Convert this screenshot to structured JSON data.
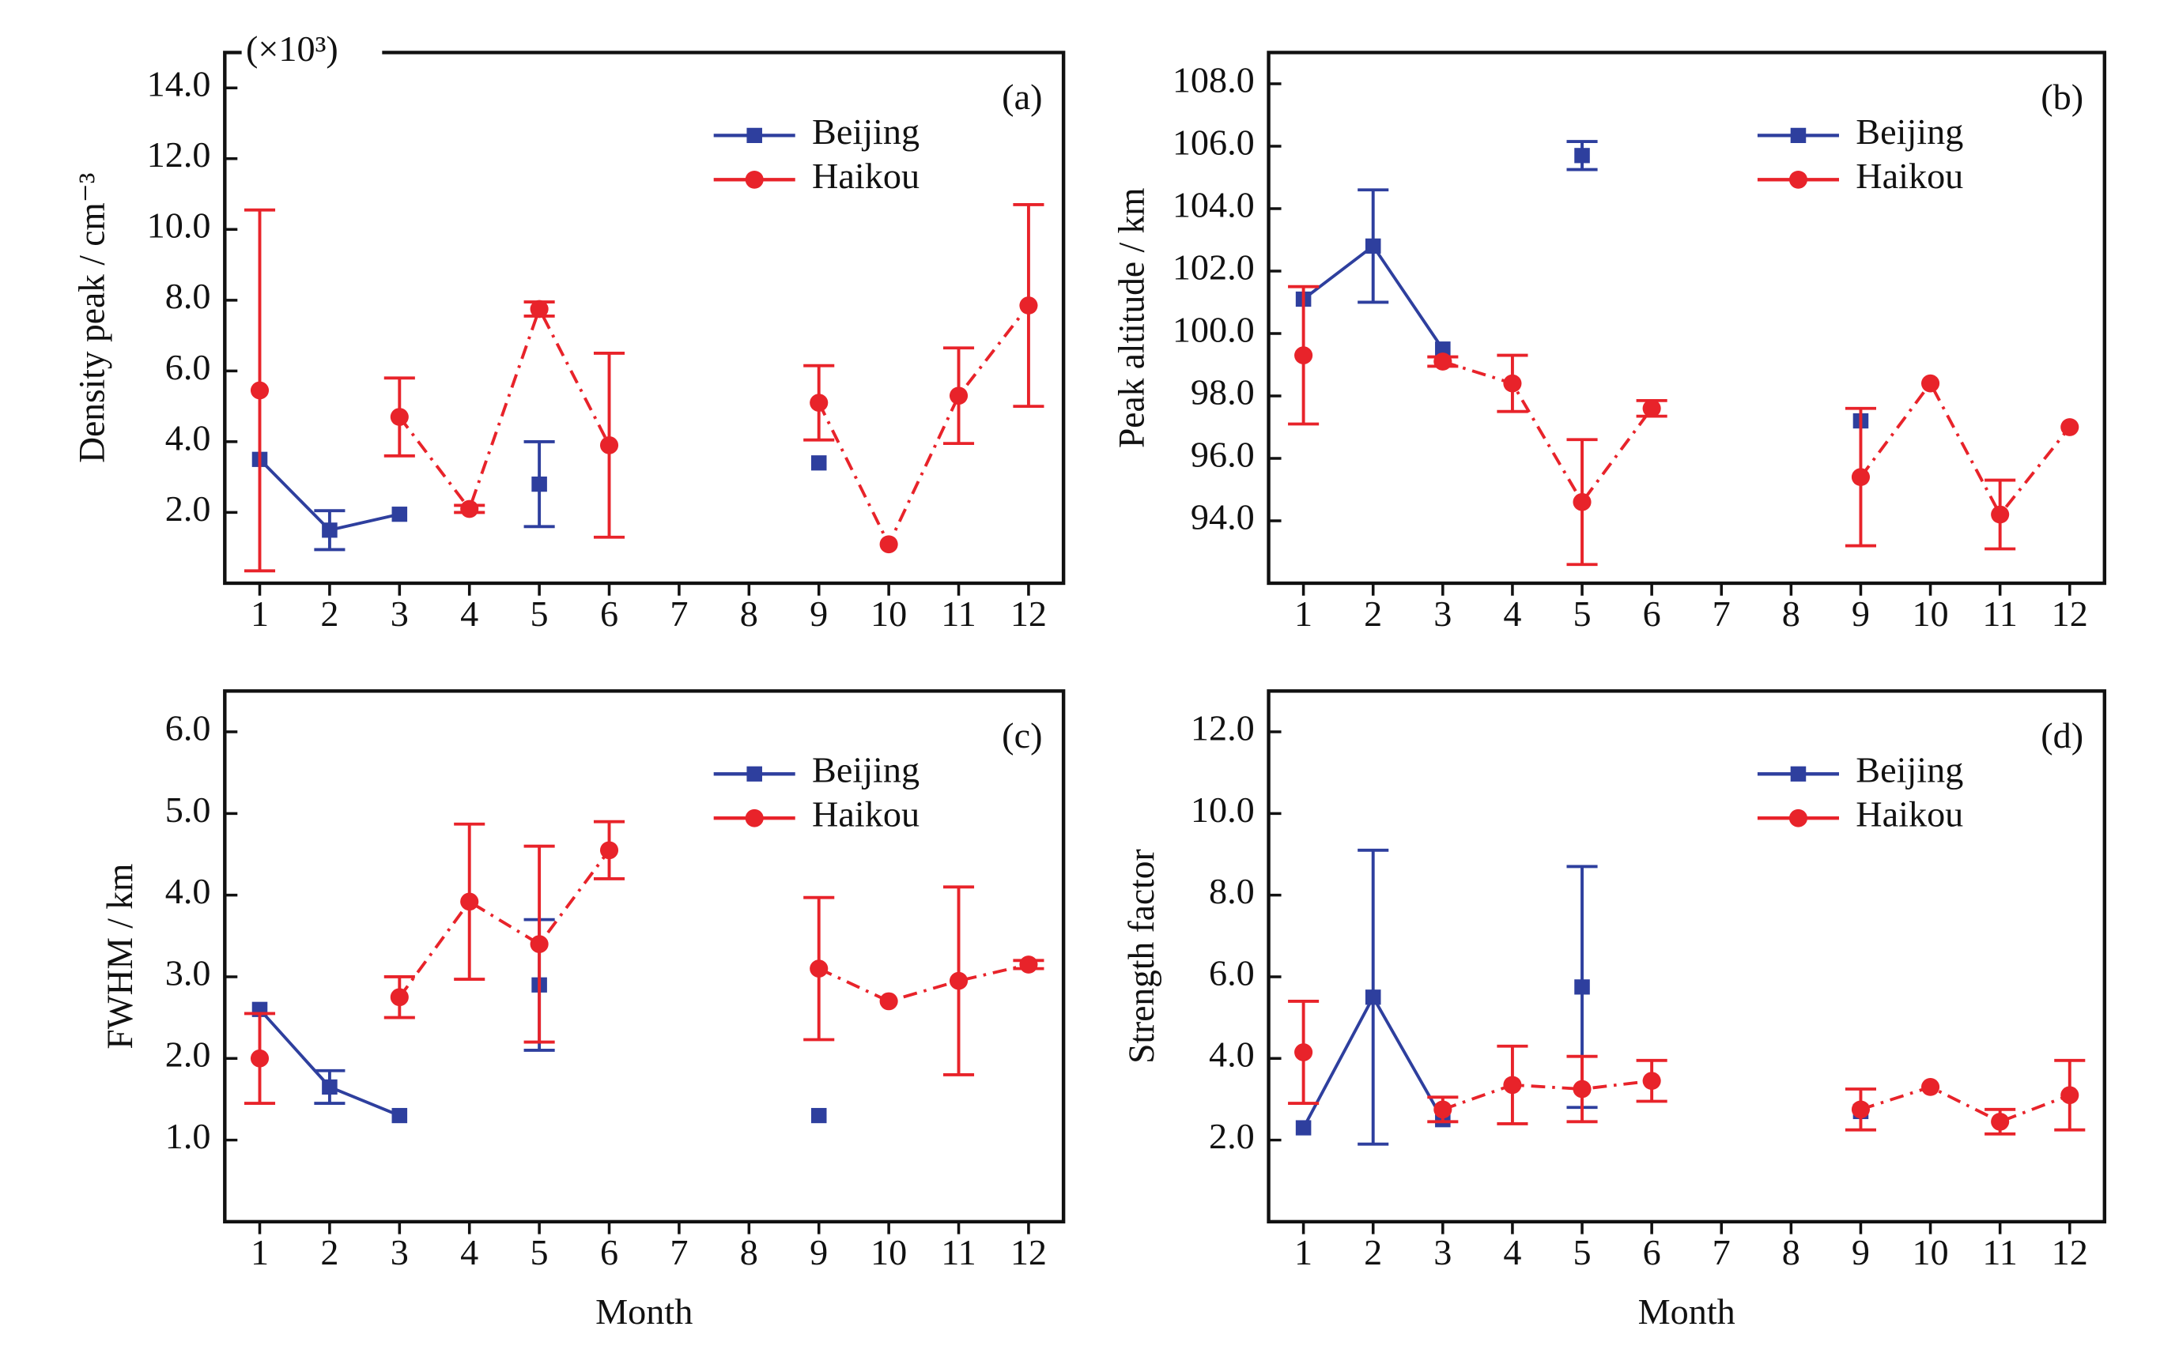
{
  "chart_data": [
    {
      "type": "line",
      "panel_label": "(a)",
      "annotation": "(×10³)",
      "y_label": "Density peak / cm⁻³",
      "x": [
        1,
        2,
        3,
        4,
        5,
        6,
        7,
        8,
        9,
        10,
        11,
        12
      ],
      "xlim": [
        0.5,
        12.5
      ],
      "xticks": [
        1,
        2,
        3,
        4,
        5,
        6,
        7,
        8,
        9,
        10,
        11,
        12
      ],
      "ylim": [
        0,
        15
      ],
      "yticks": [
        {
          "value": 2,
          "label": "2.0"
        },
        {
          "value": 4,
          "label": "4.0"
        },
        {
          "value": 6,
          "label": "6.0"
        },
        {
          "value": 8,
          "label": "8.0"
        },
        {
          "value": 10,
          "label": "10.0"
        },
        {
          "value": 12,
          "label": "12.0"
        },
        {
          "value": 14,
          "label": "14.0"
        }
      ],
      "legend": "upper right",
      "series": [
        {
          "name": "Beijing",
          "color": "#2e3f9e",
          "line_style": "solid",
          "marker": "square",
          "values": [
            3.5,
            1.5,
            1.95,
            null,
            2.8,
            null,
            null,
            null,
            3.4,
            null,
            null,
            null
          ],
          "errors": [
            null,
            0.55,
            null,
            null,
            1.2,
            null,
            null,
            null,
            null,
            null,
            null,
            null
          ]
        },
        {
          "name": "Haikou",
          "color": "#e8232a",
          "line_style": "dashdot",
          "marker": "circle",
          "values": [
            5.45,
            null,
            4.7,
            2.1,
            7.75,
            3.9,
            null,
            null,
            5.1,
            1.1,
            5.3,
            7.85
          ],
          "errors": [
            5.1,
            null,
            1.1,
            0.1,
            0.2,
            2.6,
            null,
            null,
            1.05,
            null,
            1.35,
            2.85
          ]
        }
      ]
    },
    {
      "type": "line",
      "panel_label": "(b)",
      "y_label": "Peak altitude / km",
      "x": [
        1,
        2,
        3,
        4,
        5,
        6,
        7,
        8,
        9,
        10,
        11,
        12
      ],
      "xlim": [
        0.5,
        12.5
      ],
      "xticks": [
        1,
        2,
        3,
        4,
        5,
        6,
        7,
        8,
        9,
        10,
        11,
        12
      ],
      "ylim": [
        92,
        109
      ],
      "yticks": [
        {
          "value": 94,
          "label": "94.0"
        },
        {
          "value": 96,
          "label": "96.0"
        },
        {
          "value": 98,
          "label": "98.0"
        },
        {
          "value": 100,
          "label": "100.0"
        },
        {
          "value": 102,
          "label": "102.0"
        },
        {
          "value": 104,
          "label": "104.0"
        },
        {
          "value": 106,
          "label": "106.0"
        },
        {
          "value": 108,
          "label": "108.0"
        }
      ],
      "legend": "upper right",
      "series": [
        {
          "name": "Beijing",
          "color": "#2e3f9e",
          "line_style": "solid",
          "marker": "square",
          "values": [
            101.1,
            102.8,
            99.5,
            null,
            105.7,
            null,
            null,
            null,
            97.2,
            null,
            null,
            null
          ],
          "errors": [
            null,
            1.8,
            null,
            null,
            0.45,
            null,
            null,
            null,
            null,
            null,
            null,
            null
          ]
        },
        {
          "name": "Haikou",
          "color": "#e8232a",
          "line_style": "dashdot",
          "marker": "circle",
          "values": [
            99.3,
            null,
            99.1,
            98.4,
            94.6,
            97.6,
            null,
            null,
            95.4,
            98.4,
            94.2,
            97.0
          ],
          "errors": [
            2.2,
            null,
            0.15,
            0.9,
            2.0,
            0.25,
            null,
            null,
            2.2,
            null,
            1.1,
            null
          ]
        }
      ]
    },
    {
      "type": "line",
      "panel_label": "(c)",
      "y_label": "FWHM / km",
      "x_label": "Month",
      "x": [
        1,
        2,
        3,
        4,
        5,
        6,
        7,
        8,
        9,
        10,
        11,
        12
      ],
      "xlim": [
        0.5,
        12.5
      ],
      "xticks": [
        1,
        2,
        3,
        4,
        5,
        6,
        7,
        8,
        9,
        10,
        11,
        12
      ],
      "ylim": [
        0,
        6.5
      ],
      "yticks": [
        {
          "value": 1,
          "label": "1.0"
        },
        {
          "value": 2,
          "label": "2.0"
        },
        {
          "value": 3,
          "label": "3.0"
        },
        {
          "value": 4,
          "label": "4.0"
        },
        {
          "value": 5,
          "label": "5.0"
        },
        {
          "value": 6,
          "label": "6.0"
        }
      ],
      "legend": "upper right",
      "series": [
        {
          "name": "Beijing",
          "color": "#2e3f9e",
          "line_style": "solid",
          "marker": "square",
          "values": [
            2.6,
            1.65,
            1.3,
            null,
            2.9,
            null,
            null,
            null,
            1.3,
            null,
            null,
            null
          ],
          "errors": [
            null,
            0.2,
            null,
            null,
            0.8,
            null,
            null,
            null,
            null,
            null,
            null,
            null
          ]
        },
        {
          "name": "Haikou",
          "color": "#e8232a",
          "line_style": "dashdot",
          "marker": "circle",
          "values": [
            2.0,
            null,
            2.75,
            3.92,
            3.4,
            4.55,
            null,
            null,
            3.1,
            2.7,
            2.95,
            3.15
          ],
          "errors": [
            0.55,
            null,
            0.25,
            0.95,
            1.2,
            0.35,
            null,
            null,
            0.87,
            null,
            1.15,
            0.05
          ]
        }
      ]
    },
    {
      "type": "line",
      "panel_label": "(d)",
      "y_label": "Strength factor",
      "x_label": "Month",
      "x": [
        1,
        2,
        3,
        4,
        5,
        6,
        7,
        8,
        9,
        10,
        11,
        12
      ],
      "xlim": [
        0.5,
        12.5
      ],
      "xticks": [
        1,
        2,
        3,
        4,
        5,
        6,
        7,
        8,
        9,
        10,
        11,
        12
      ],
      "ylim": [
        0,
        13
      ],
      "yticks": [
        {
          "value": 2,
          "label": "2.0"
        },
        {
          "value": 4,
          "label": "4.0"
        },
        {
          "value": 6,
          "label": "6.0"
        },
        {
          "value": 8,
          "label": "8.0"
        },
        {
          "value": 10,
          "label": "10.0"
        },
        {
          "value": 12,
          "label": "12.0"
        }
      ],
      "legend": "upper right",
      "series": [
        {
          "name": "Beijing",
          "color": "#2e3f9e",
          "line_style": "solid",
          "marker": "square",
          "values": [
            2.3,
            5.5,
            2.5,
            null,
            5.75,
            null,
            null,
            null,
            2.7,
            null,
            null,
            null
          ],
          "errors": [
            null,
            3.6,
            null,
            null,
            2.95,
            null,
            null,
            null,
            null,
            null,
            null,
            null
          ]
        },
        {
          "name": "Haikou",
          "color": "#e8232a",
          "line_style": "dashdot",
          "marker": "circle",
          "values": [
            4.15,
            null,
            2.75,
            3.35,
            3.25,
            3.45,
            null,
            null,
            2.75,
            3.3,
            2.45,
            3.1
          ],
          "errors": [
            1.25,
            null,
            0.3,
            0.95,
            0.8,
            0.5,
            null,
            null,
            0.5,
            null,
            0.3,
            0.85
          ]
        }
      ]
    }
  ]
}
